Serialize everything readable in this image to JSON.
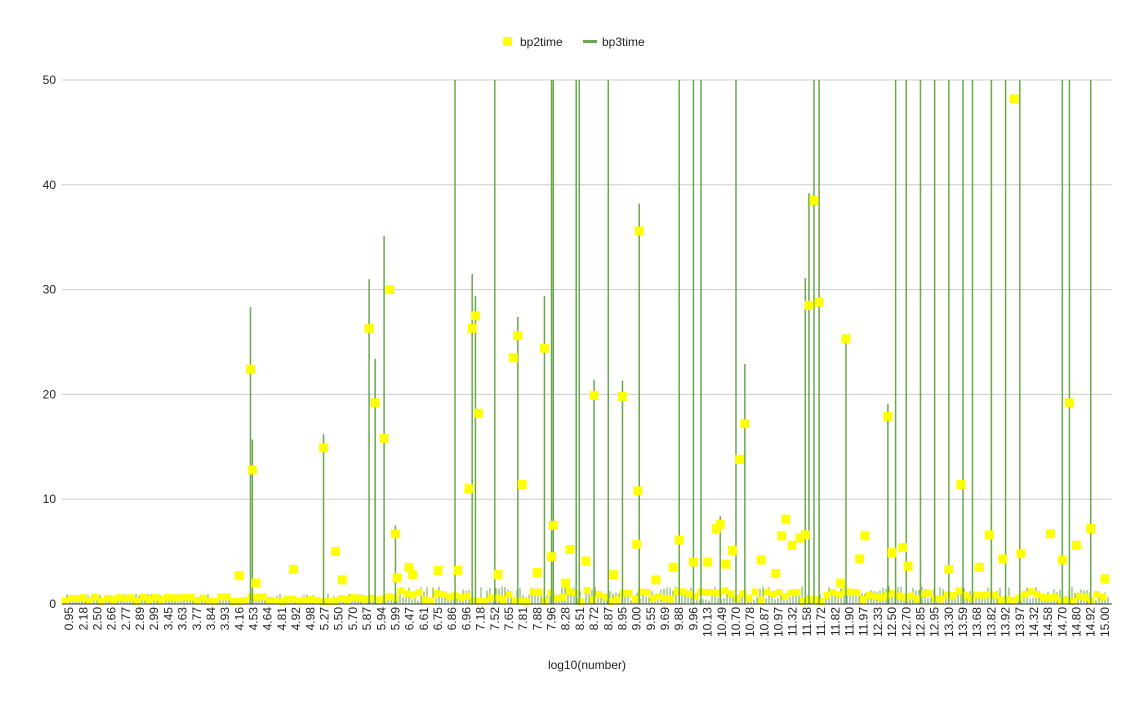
{
  "chart_data": {
    "type": "line",
    "xlabel": "log10(number)",
    "ylim": [
      0,
      50
    ],
    "yticks": [
      0,
      10,
      20,
      30,
      40,
      50
    ],
    "grid": true,
    "legend_position": "top",
    "x_tick_labels": [
      "0.95",
      "2.18",
      "2.50",
      "2.66",
      "2.77",
      "2.89",
      "2.99",
      "3.45",
      "3.63",
      "3.77",
      "3.84",
      "3.93",
      "4.16",
      "4.53",
      "4.64",
      "4.81",
      "4.92",
      "4.98",
      "5.27",
      "5.50",
      "5.70",
      "5.87",
      "5.94",
      "5.99",
      "6.47",
      "6.61",
      "6.75",
      "6.86",
      "6.96",
      "7.18",
      "7.52",
      "7.65",
      "7.81",
      "7.88",
      "7.96",
      "8.28",
      "8.51",
      "8.72",
      "8.87",
      "8.95",
      "9.00",
      "9.55",
      "9.69",
      "9.88",
      "9.96",
      "10.13",
      "10.49",
      "10.70",
      "10.78",
      "10.87",
      "10.97",
      "11.32",
      "11.58",
      "11.72",
      "11.82",
      "11.90",
      "11.97",
      "12.33",
      "12.50",
      "12.70",
      "12.85",
      "12.95",
      "13.30",
      "13.59",
      "13.68",
      "13.82",
      "13.92",
      "13.97",
      "14.32",
      "14.58",
      "14.70",
      "14.80",
      "14.92",
      "15.00"
    ],
    "series": [
      {
        "name": "bp2time",
        "color": "#ffff00",
        "marker": "square",
        "points": [
          [
            4.16,
            2.7
          ],
          [
            4.45,
            22.4
          ],
          [
            4.5,
            12.8
          ],
          [
            4.55,
            2.0
          ],
          [
            4.9,
            3.3
          ],
          [
            5.25,
            14.9
          ],
          [
            5.45,
            5.0
          ],
          [
            5.55,
            2.3
          ],
          [
            5.88,
            26.3
          ],
          [
            5.91,
            19.2
          ],
          [
            5.95,
            15.8
          ],
          [
            5.97,
            30.0
          ],
          [
            5.99,
            6.7
          ],
          [
            6.05,
            2.5
          ],
          [
            6.45,
            3.5
          ],
          [
            6.5,
            2.8
          ],
          [
            6.75,
            3.2
          ],
          [
            6.9,
            3.2
          ],
          [
            7.0,
            11.0
          ],
          [
            7.05,
            26.3
          ],
          [
            7.1,
            27.5
          ],
          [
            7.15,
            18.2
          ],
          [
            7.55,
            2.8
          ],
          [
            7.7,
            23.5
          ],
          [
            7.75,
            25.6
          ],
          [
            7.8,
            11.4
          ],
          [
            7.88,
            3.0
          ],
          [
            7.92,
            24.4
          ],
          [
            7.96,
            4.5
          ],
          [
            8.0,
            7.5
          ],
          [
            8.28,
            2.0
          ],
          [
            8.35,
            5.2
          ],
          [
            8.6,
            4.1
          ],
          [
            8.72,
            19.9
          ],
          [
            8.9,
            2.8
          ],
          [
            8.95,
            19.8
          ],
          [
            9.0,
            5.7
          ],
          [
            9.05,
            10.8
          ],
          [
            9.1,
            35.6
          ],
          [
            9.6,
            2.3
          ],
          [
            9.8,
            3.5
          ],
          [
            9.88,
            6.1
          ],
          [
            9.96,
            4.0
          ],
          [
            10.13,
            4.0
          ],
          [
            10.35,
            7.2
          ],
          [
            10.45,
            7.6
          ],
          [
            10.55,
            3.8
          ],
          [
            10.65,
            5.1
          ],
          [
            10.72,
            13.8
          ],
          [
            10.75,
            17.2
          ],
          [
            10.85,
            4.2
          ],
          [
            10.95,
            2.9
          ],
          [
            11.05,
            6.5
          ],
          [
            11.15,
            8.1
          ],
          [
            11.3,
            5.6
          ],
          [
            11.45,
            6.3
          ],
          [
            11.55,
            6.6
          ],
          [
            11.6,
            28.5
          ],
          [
            11.65,
            38.5
          ],
          [
            11.7,
            28.8
          ],
          [
            11.85,
            2.0
          ],
          [
            11.88,
            25.3
          ],
          [
            11.95,
            4.3
          ],
          [
            12.0,
            6.5
          ],
          [
            12.45,
            17.9
          ],
          [
            12.5,
            4.9
          ],
          [
            12.65,
            5.4
          ],
          [
            12.72,
            3.6
          ],
          [
            13.3,
            3.3
          ],
          [
            13.55,
            11.4
          ],
          [
            13.7,
            3.5
          ],
          [
            13.8,
            6.6
          ],
          [
            13.9,
            4.3
          ],
          [
            13.95,
            48.2
          ],
          [
            14.0,
            4.8
          ],
          [
            14.6,
            6.7
          ],
          [
            14.7,
            4.2
          ],
          [
            14.75,
            19.2
          ],
          [
            14.8,
            5.6
          ],
          [
            14.92,
            7.2
          ],
          [
            15.0,
            2.4
          ]
        ]
      },
      {
        "name": "bp3time",
        "color": "#6aa84f",
        "marker": "line",
        "points": [
          [
            4.45,
            28.3
          ],
          [
            4.5,
            15.7
          ],
          [
            5.25,
            16.2
          ],
          [
            5.88,
            31.0
          ],
          [
            5.91,
            23.4
          ],
          [
            5.95,
            35.1
          ],
          [
            5.99,
            7.5
          ],
          [
            6.88,
            50
          ],
          [
            7.05,
            31.5
          ],
          [
            7.1,
            29.4
          ],
          [
            7.52,
            50
          ],
          [
            7.75,
            27.4
          ],
          [
            7.92,
            29.4
          ],
          [
            7.96,
            50
          ],
          [
            8.0,
            50
          ],
          [
            8.45,
            50
          ],
          [
            8.5,
            50
          ],
          [
            8.72,
            21.4
          ],
          [
            8.87,
            50
          ],
          [
            8.95,
            21.3
          ],
          [
            9.1,
            38.2
          ],
          [
            9.88,
            50
          ],
          [
            9.96,
            50
          ],
          [
            10.05,
            50
          ],
          [
            10.45,
            8.4
          ],
          [
            10.7,
            50
          ],
          [
            10.75,
            22.9
          ],
          [
            11.55,
            31.1
          ],
          [
            11.6,
            39.2
          ],
          [
            11.65,
            50
          ],
          [
            11.7,
            50
          ],
          [
            11.88,
            25.5
          ],
          [
            12.45,
            19.1
          ],
          [
            12.55,
            50
          ],
          [
            12.7,
            50
          ],
          [
            12.85,
            50
          ],
          [
            12.95,
            50
          ],
          [
            13.3,
            50
          ],
          [
            13.59,
            50
          ],
          [
            13.65,
            50
          ],
          [
            13.82,
            50
          ],
          [
            13.92,
            50
          ],
          [
            13.97,
            50
          ],
          [
            14.7,
            50
          ],
          [
            14.75,
            50
          ],
          [
            14.92,
            50
          ]
        ]
      }
    ]
  }
}
